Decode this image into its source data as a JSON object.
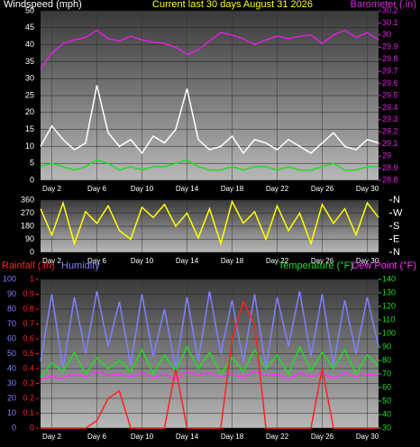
{
  "chart_data": [
    {
      "type": "line",
      "title": "Current last 30 days August 31 2026",
      "y_label": "Windspeed (mph)",
      "y2_label": "Barometer (.in)",
      "x": [
        1,
        2,
        3,
        4,
        5,
        6,
        7,
        8,
        9,
        10,
        11,
        12,
        13,
        14,
        15,
        16,
        17,
        18,
        19,
        20,
        21,
        22,
        23,
        24,
        25,
        26,
        27,
        28,
        29,
        30,
        31
      ],
      "xlim": [
        1,
        31
      ],
      "xticks": [
        {
          "value": 2,
          "label": "Day 2"
        },
        {
          "value": 6,
          "label": "Day 6"
        },
        {
          "value": 10,
          "label": "Day 10"
        },
        {
          "value": 14,
          "label": "Day 14"
        },
        {
          "value": 18,
          "label": "Day 18"
        },
        {
          "value": 22,
          "label": "Day 22"
        },
        {
          "value": 26,
          "label": "Day 26"
        },
        {
          "value": 30,
          "label": "Day 30"
        }
      ],
      "ylim": [
        0,
        50
      ],
      "yticks": [
        0,
        5,
        10,
        15,
        20,
        25,
        30,
        35,
        40,
        45,
        50
      ],
      "y2lim": [
        28.8,
        30.2
      ],
      "y2ticks": [
        28.8,
        28.9,
        29,
        29.1,
        29.2,
        29.3,
        29.4,
        29.5,
        29.6,
        29.7,
        29.8,
        29.9,
        30,
        30.1,
        30.2
      ],
      "grid": true,
      "series": [
        {
          "color": "#ffffff",
          "values": [
            10,
            16,
            12,
            9,
            11,
            28,
            14,
            10,
            12,
            8,
            13,
            11,
            15,
            27,
            12,
            9,
            10,
            13,
            8,
            12,
            11,
            9,
            12,
            10,
            8,
            11,
            14,
            10,
            9,
            12,
            11
          ]
        },
        {
          "color": "#22dd22",
          "values": [
            4,
            5,
            4,
            3,
            4,
            6,
            5,
            3,
            4,
            3,
            4,
            4,
            5,
            6,
            4,
            3,
            3,
            4,
            3,
            4,
            4,
            3,
            4,
            3,
            3,
            4,
            5,
            3,
            3,
            4,
            4
          ]
        },
        {
          "color": "#e020e0",
          "axis": "y2",
          "values": [
            29.72,
            29.85,
            29.93,
            29.96,
            29.98,
            30.04,
            29.97,
            29.95,
            29.99,
            29.96,
            29.94,
            29.93,
            29.9,
            29.84,
            29.88,
            29.95,
            30.02,
            30.0,
            29.97,
            29.92,
            29.96,
            29.99,
            29.97,
            29.99,
            30.0,
            29.93,
            30.0,
            30.04,
            29.98,
            30.02,
            29.96
          ]
        }
      ]
    },
    {
      "type": "line",
      "x": [
        1,
        2,
        3,
        4,
        5,
        6,
        7,
        8,
        9,
        10,
        11,
        12,
        13,
        14,
        15,
        16,
        17,
        18,
        19,
        20,
        21,
        22,
        23,
        24,
        25,
        26,
        27,
        28,
        29,
        30,
        31
      ],
      "xlim": [
        1,
        31
      ],
      "xticks": [
        {
          "value": 2,
          "label": "Day 2"
        },
        {
          "value": 6,
          "label": "Day 6"
        },
        {
          "value": 10,
          "label": "Day 10"
        },
        {
          "value": 14,
          "label": "Day 14"
        },
        {
          "value": 18,
          "label": "Day 18"
        },
        {
          "value": 22,
          "label": "Day 22"
        },
        {
          "value": 26,
          "label": "Day 26"
        },
        {
          "value": 30,
          "label": "Day 30"
        }
      ],
      "ylim": [
        0,
        360
      ],
      "yticks": [
        0,
        90,
        180,
        270,
        360
      ],
      "y2lim": [
        0,
        360
      ],
      "y2ticks": [
        {
          "value": 360,
          "label": "N"
        },
        {
          "value": 270,
          "label": "W"
        },
        {
          "value": 180,
          "label": "S"
        },
        {
          "value": 90,
          "label": "E"
        },
        {
          "value": 0,
          "label": "N"
        }
      ],
      "grid": true,
      "series": [
        {
          "color": "#ffff00",
          "values": [
            300,
            120,
            340,
            60,
            280,
            200,
            320,
            150,
            90,
            310,
            240,
            330,
            180,
            270,
            100,
            300,
            60,
            350,
            200,
            280,
            90,
            320,
            150,
            270,
            60,
            330,
            200,
            300,
            120,
            340,
            240
          ]
        }
      ]
    },
    {
      "type": "line",
      "x": [
        1,
        2,
        3,
        4,
        5,
        6,
        7,
        8,
        9,
        10,
        11,
        12,
        13,
        14,
        15,
        16,
        17,
        18,
        19,
        20,
        21,
        22,
        23,
        24,
        25,
        26,
        27,
        28,
        29,
        30,
        31
      ],
      "xlim": [
        1,
        31
      ],
      "xticks": [
        {
          "value": 2,
          "label": "Day 2"
        },
        {
          "value": 6,
          "label": "Day 6"
        },
        {
          "value": 10,
          "label": "Day 10"
        },
        {
          "value": 14,
          "label": "Day 14"
        },
        {
          "value": 18,
          "label": "Day 18"
        },
        {
          "value": 22,
          "label": "Day 22"
        },
        {
          "value": 26,
          "label": "Day 26"
        },
        {
          "value": 30,
          "label": "Day 30"
        }
      ],
      "ylim": [
        0,
        100
      ],
      "yticks": [
        0,
        10,
        20,
        30,
        40,
        50,
        60,
        70,
        80,
        90,
        100
      ],
      "y2lim": [
        30,
        140
      ],
      "y2ticks": [
        30,
        40,
        50,
        60,
        70,
        80,
        90,
        100,
        110,
        120,
        130,
        140
      ],
      "y3lim": [
        0,
        1
      ],
      "y3ticks": [
        0,
        0.1,
        0.2,
        0.3,
        0.4,
        0.5,
        0.6,
        0.7,
        0.8,
        0.9,
        1
      ],
      "grid": true,
      "series": [
        {
          "name": "Humidity",
          "color": "#8080ff",
          "values": [
            45,
            90,
            40,
            88,
            50,
            92,
            55,
            85,
            42,
            90,
            48,
            80,
            40,
            88,
            45,
            92,
            50,
            86,
            44,
            90,
            40,
            88,
            55,
            92,
            48,
            90,
            42,
            86,
            50,
            88,
            55
          ]
        },
        {
          "name": "Temperature (°F)",
          "color": "#22dd22",
          "axis": "y2",
          "values": [
            68,
            78,
            72,
            86,
            70,
            82,
            74,
            80,
            72,
            88,
            70,
            84,
            72,
            90,
            74,
            86,
            70,
            82,
            72,
            88,
            74,
            84,
            70,
            90,
            72,
            86,
            74,
            88,
            70,
            84,
            76
          ]
        },
        {
          "name": "Dew Point (°F)",
          "color": "#ff30ff",
          "axis": "y2",
          "values": [
            66,
            68,
            67,
            70,
            68,
            72,
            69,
            70,
            68,
            71,
            67,
            70,
            66,
            72,
            69,
            71,
            68,
            70,
            67,
            72,
            69,
            70,
            66,
            71,
            68,
            70,
            67,
            71,
            68,
            70,
            69
          ]
        },
        {
          "name": "Rainfall (.in)",
          "color": "#ff2020",
          "axis": "y3",
          "values": [
            0,
            0,
            0,
            0,
            0,
            0.05,
            0.2,
            0.25,
            0,
            0,
            0,
            0,
            0.4,
            0,
            0,
            0,
            0,
            0.6,
            0.85,
            0.7,
            0,
            0,
            0,
            0,
            0,
            0.4,
            0,
            0,
            0,
            0,
            0
          ]
        }
      ]
    }
  ]
}
